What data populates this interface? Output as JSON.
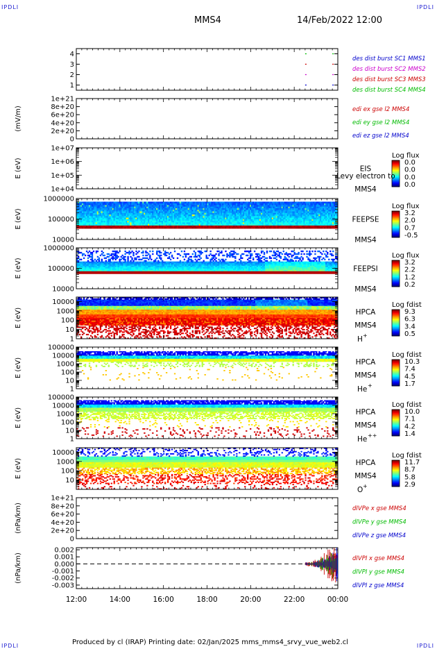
{
  "header": {
    "corner_tl": "IPDLI",
    "corner_tr": "IPDLI",
    "corner_bl": "IPDLI",
    "corner_br": "IPDLI",
    "spacecraft": "MMS4",
    "datetime": "14/Feb/2022 12:00"
  },
  "footer": {
    "text": "Produced by cl (IRAP)   Printing date: 02/Jan/2025   mms_mms4_srvy_vue_web2.cl"
  },
  "chart_data": [
    {
      "type": "line",
      "panel": "burst",
      "y_ticks": [
        "1",
        "2",
        "3",
        "4"
      ],
      "ylim": [
        0.5,
        4.5
      ],
      "legend": [
        {
          "name": "des dist burst SC1 MMS1",
          "color": "#0000cc"
        },
        {
          "name": "des dist burst SC2 MMS2",
          "color": "#cc00cc"
        },
        {
          "name": "des dist burst SC3 MMS3",
          "color": "#cc0000"
        },
        {
          "name": "des dist burst SC4 MMS4",
          "color": "#00bb00"
        }
      ],
      "series": [
        {
          "sc": 4,
          "x": [
            "22:30",
            "23:45"
          ]
        },
        {
          "sc": 3,
          "x": [
            "22:30",
            "23:45"
          ]
        },
        {
          "sc": 2,
          "x": [
            "22:30",
            "23:45"
          ]
        },
        {
          "sc": 1,
          "x": [
            "22:30",
            "23:45"
          ]
        }
      ]
    },
    {
      "type": "line",
      "panel": "edi",
      "ylabel": "(mV/m)",
      "y_ticks": [
        "0",
        "2e+20",
        "4e+20",
        "6e+20",
        "8e+20",
        "1e+21"
      ],
      "ylim": [
        0,
        1e+21
      ],
      "legend": [
        {
          "name": "edi ex gse l2 MMS4",
          "color": "#cc0000"
        },
        {
          "name": "edi ey gse l2 MMS4",
          "color": "#00bb00"
        },
        {
          "name": "edi ez gse l2 MMS4",
          "color": "#0000cc"
        }
      ]
    },
    {
      "type": "heatmap",
      "panel": "eis",
      "ylabel": "E (eV)",
      "y_ticks": [
        "1e+04",
        "1e+05",
        "1e+06",
        "1e+07"
      ],
      "ylim": [
        10000.0,
        10000000.0
      ],
      "log_y": true,
      "instrument": "EIS",
      "instrument_sc": "MMS4",
      "overlay_text": "Levy electron to",
      "colorbar": {
        "title": "Log flux",
        "ticks": [
          "0.0",
          "0.0",
          "0.0",
          "0.0"
        ]
      }
    },
    {
      "type": "heatmap",
      "panel": "feepse",
      "ylabel": "E (eV)",
      "y_ticks": [
        "10000",
        "100000",
        "1000000"
      ],
      "ylim": [
        10000,
        1000000
      ],
      "log_y": true,
      "instrument": "FEEPSE",
      "instrument_sc": "MMS4",
      "colorbar": {
        "title": "Log flux",
        "ticks": [
          "3.2",
          "2.0",
          "0.7",
          "-0.5"
        ]
      }
    },
    {
      "type": "heatmap",
      "panel": "feepsi",
      "ylabel": "E (eV)",
      "y_ticks": [
        "10000",
        "100000",
        "1000000"
      ],
      "ylim": [
        10000,
        1000000
      ],
      "log_y": true,
      "instrument": "FEEPSI",
      "instrument_sc": "MMS4",
      "colorbar": {
        "title": "Log flux",
        "ticks": [
          "3.2",
          "2.2",
          "1.2",
          "0.2"
        ]
      }
    },
    {
      "type": "heatmap",
      "panel": "hpca_h",
      "ylabel": "E (eV)",
      "y_ticks": [
        "1",
        "10",
        "100",
        "1000",
        "10000"
      ],
      "ylim": [
        1,
        30000
      ],
      "log_y": true,
      "instrument": "HPCA",
      "instrument_sc": "MMS4",
      "species": "H",
      "species_sup": "+",
      "colorbar": {
        "title": "Log fdist",
        "ticks": [
          "9.3",
          "6.3",
          "3.4",
          "0.5"
        ]
      }
    },
    {
      "type": "heatmap",
      "panel": "hpca_he",
      "ylabel": "E (eV)",
      "y_ticks": [
        "1",
        "10",
        "100",
        "1000",
        "10000",
        "100000"
      ],
      "ylim": [
        1,
        100000
      ],
      "log_y": true,
      "instrument": "HPCA",
      "instrument_sc": "MMS4",
      "species": "He",
      "species_sup": "+",
      "colorbar": {
        "title": "Log fdist",
        "ticks": [
          "10.3",
          "7.4",
          "4.5",
          "1.7"
        ]
      }
    },
    {
      "type": "heatmap",
      "panel": "hpca_hepp",
      "ylabel": "E (eV)",
      "y_ticks": [
        "1",
        "10",
        "100",
        "1000",
        "10000",
        "100000"
      ],
      "ylim": [
        1,
        100000
      ],
      "log_y": true,
      "instrument": "HPCA",
      "instrument_sc": "MMS4",
      "species": "He",
      "species_sup": "++",
      "colorbar": {
        "title": "Log fdist",
        "ticks": [
          "10.0",
          "7.1",
          "4.2",
          "1.4"
        ]
      }
    },
    {
      "type": "heatmap",
      "panel": "hpca_o",
      "ylabel": "E (eV)",
      "y_ticks": [
        "10",
        "100",
        "1000",
        "10000"
      ],
      "ylim": [
        1,
        30000
      ],
      "log_y": true,
      "instrument": "HPCA",
      "instrument_sc": "MMS4",
      "species": "O",
      "species_sup": "+",
      "colorbar": {
        "title": "Log fdist",
        "ticks": [
          "11.7",
          "8.7",
          "5.8",
          "2.9"
        ]
      }
    },
    {
      "type": "line",
      "panel": "divpe",
      "ylabel": "(nPa/km)",
      "y_ticks": [
        "0",
        "2e+20",
        "4e+20",
        "6e+20",
        "8e+20",
        "1e+21"
      ],
      "ylim": [
        0,
        1e+21
      ],
      "legend": [
        {
          "name": "dIVPe x gse MMS4",
          "color": "#cc0000"
        },
        {
          "name": "dIVPe y gse MMS4",
          "color": "#00bb00"
        },
        {
          "name": "dIVPe z gse MMS4",
          "color": "#0000cc"
        }
      ]
    },
    {
      "type": "line",
      "panel": "divpi",
      "ylabel": "(nPa/km)",
      "y_ticks": [
        "-0.003",
        "-0.002",
        "-0.001",
        "0.000",
        "0.001",
        "0.002"
      ],
      "ylim": [
        -0.0035,
        0.0023
      ],
      "legend": [
        {
          "name": "dIVPI x gse MMS4",
          "color": "#cc0000"
        },
        {
          "name": "dIVPI y gse MMS4",
          "color": "#00bb00"
        },
        {
          "name": "dIVPI z gse MMS4",
          "color": "#0000cc"
        }
      ],
      "data_start": "22:30",
      "data_end": "00:00"
    }
  ],
  "x_axis": {
    "ticks": [
      "12:00",
      "14:00",
      "16:00",
      "18:00",
      "20:00",
      "22:00",
      "00:00"
    ]
  }
}
